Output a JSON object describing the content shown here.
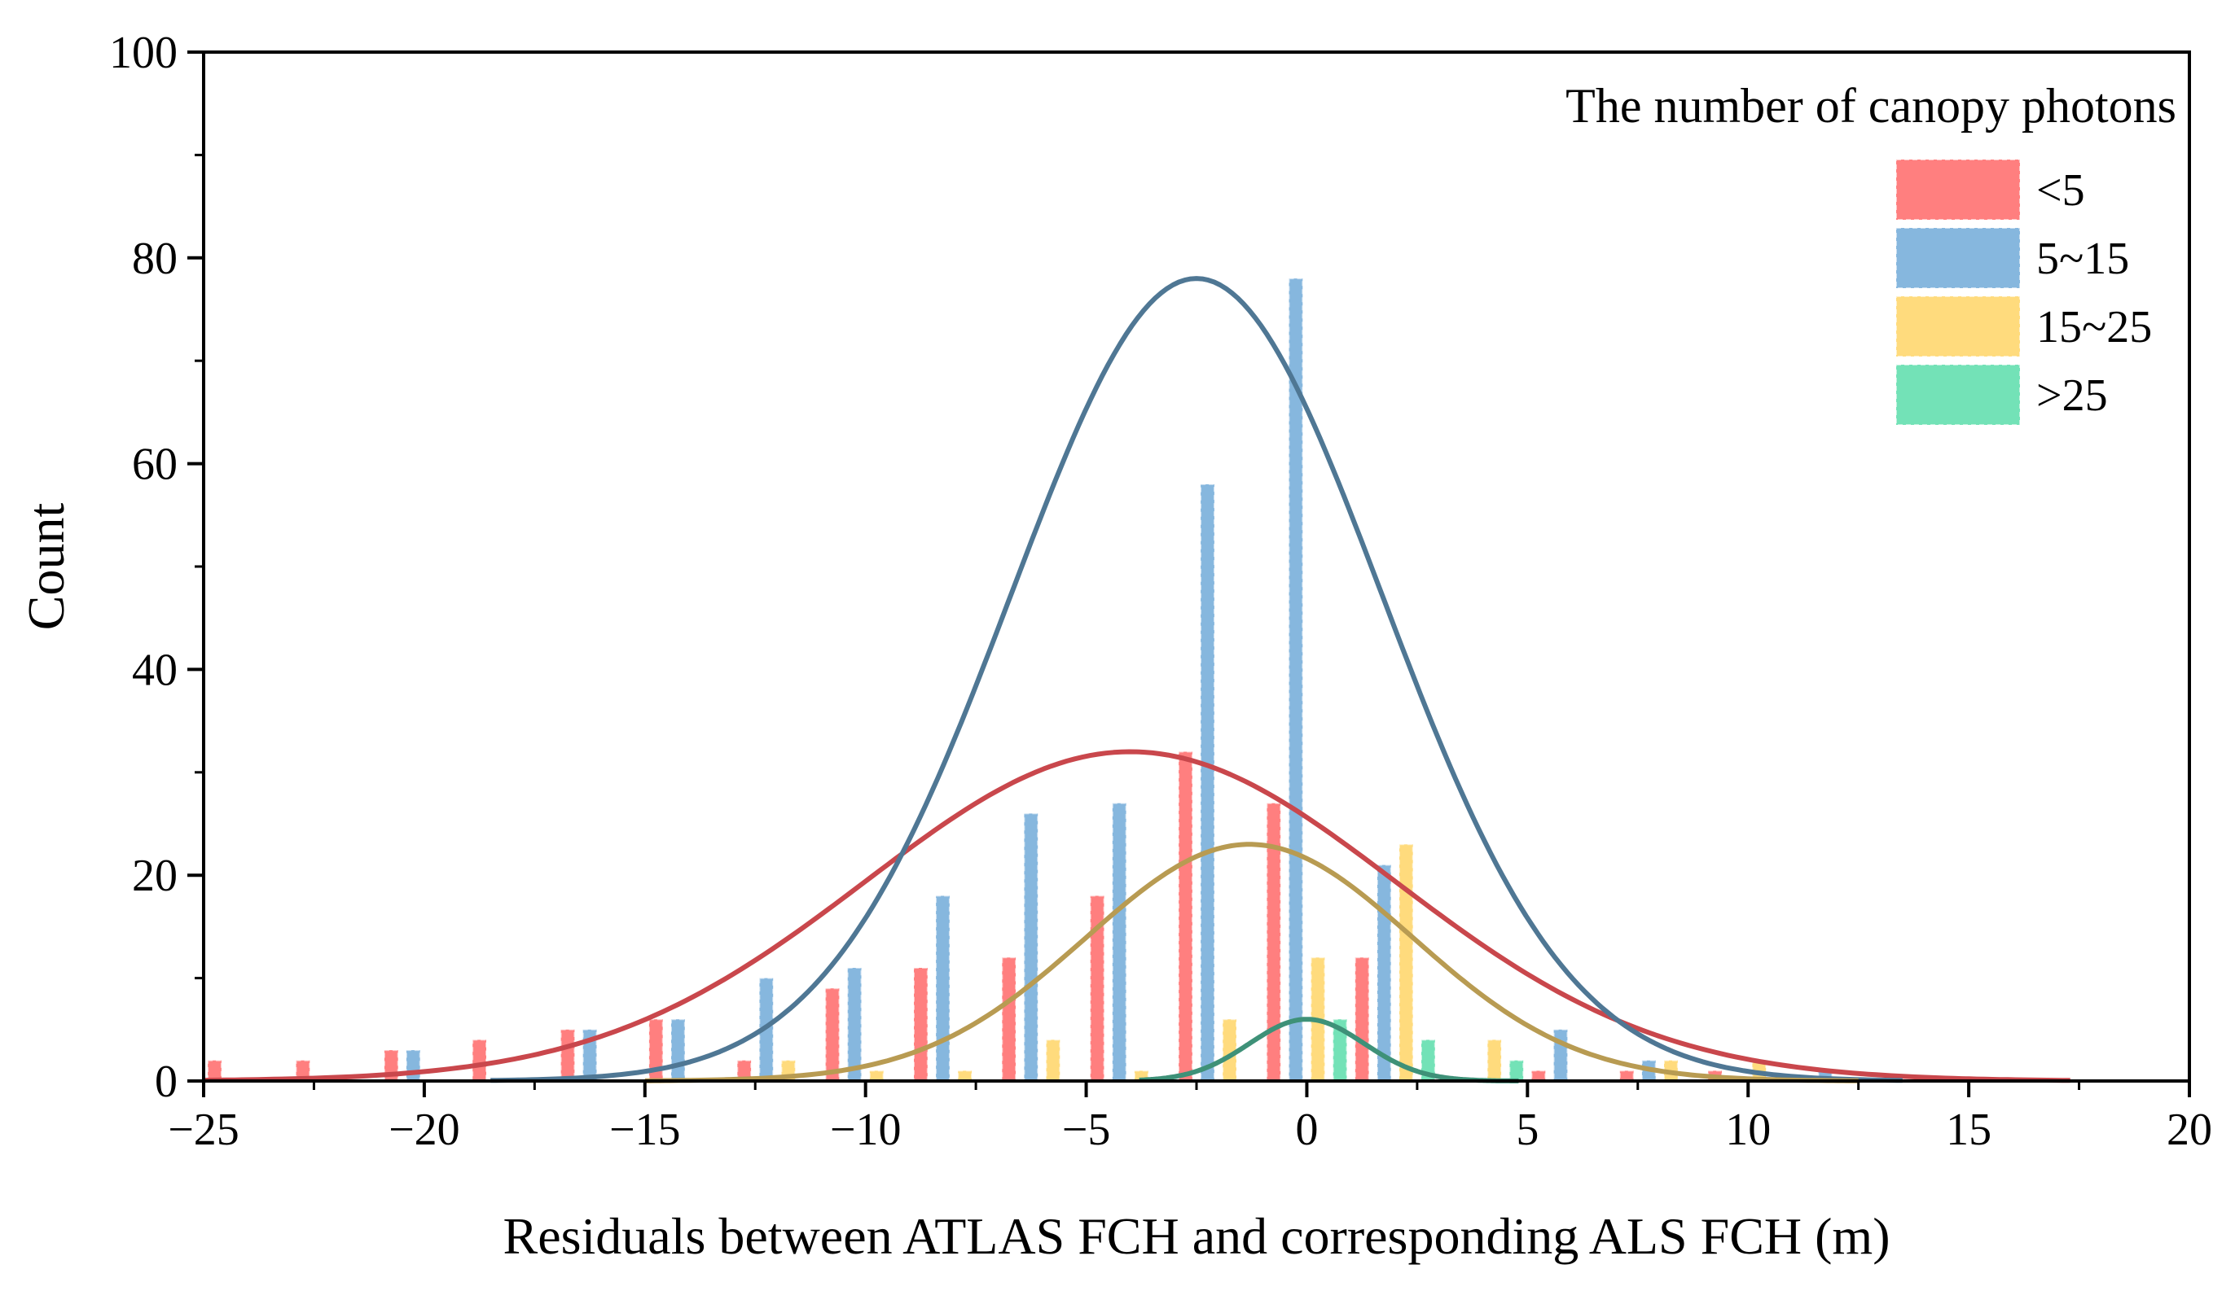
{
  "chart_data": {
    "type": "bar",
    "title": "",
    "xlabel": "Residuals between ATLAS FCH and corresponding ALS FCH (m)",
    "ylabel": "Count",
    "xlim": [
      -25,
      20
    ],
    "ylim": [
      0,
      100
    ],
    "x_ticks": [
      -25,
      -20,
      -15,
      -10,
      -5,
      0,
      5,
      10,
      15,
      20
    ],
    "x_tick_labels": [
      "−25",
      "−20",
      "−15",
      "−10",
      "−5",
      "0",
      "5",
      "10",
      "15",
      "20"
    ],
    "y_ticks": [
      0,
      20,
      40,
      60,
      80,
      100
    ],
    "y_tick_labels": [
      "0",
      "20",
      "40",
      "60",
      "80",
      "100"
    ],
    "bin_width": 2,
    "bin_centers": [
      -24,
      -22,
      -20,
      -18,
      -16,
      -14,
      -12,
      -10,
      -8,
      -6,
      -4,
      -2,
      0,
      2,
      4,
      6,
      8,
      10,
      12
    ],
    "legend": {
      "title": "The number of canopy photons",
      "position": "top-right"
    },
    "series": [
      {
        "name": "<5",
        "color": "#FF7F7F",
        "curve_color": "#C9474C",
        "values": [
          2,
          2,
          3,
          4,
          5,
          6,
          2,
          9,
          11,
          12,
          18,
          32,
          27,
          12,
          0,
          1,
          1,
          1,
          0
        ],
        "fit": {
          "mean": -4,
          "sd": 6.0,
          "peak": 32,
          "range": [
            -25,
            17.3
          ]
        }
      },
      {
        "name": "5~15",
        "color": "#86B7DE",
        "curve_color": "#4F7794",
        "values": [
          0,
          0,
          3,
          0,
          5,
          6,
          10,
          11,
          18,
          26,
          27,
          58,
          78,
          21,
          0,
          5,
          2,
          0,
          1
        ],
        "fit": {
          "mean": -2.5,
          "sd": 4.2,
          "peak": 78,
          "range": [
            -18.5,
            13.5
          ]
        }
      },
      {
        "name": "15~25",
        "color": "#FFDB7D",
        "curve_color": "#B89B52",
        "values": [
          0,
          0,
          0,
          0,
          0,
          0,
          2,
          1,
          1,
          4,
          1,
          6,
          12,
          23,
          4,
          0,
          2,
          2,
          0
        ],
        "fit": {
          "mean": -1.3,
          "sd": 3.7,
          "peak": 23,
          "range": [
            -15,
            12.5
          ]
        }
      },
      {
        "name": ">25",
        "color": "#73E2B7",
        "curve_color": "#3E9178",
        "values": [
          0,
          0,
          0,
          0,
          0,
          0,
          0,
          0,
          0,
          0,
          0,
          0,
          6,
          4,
          2,
          0,
          0,
          0,
          0
        ],
        "fit": {
          "mean": 0,
          "sd": 1.3,
          "peak": 6,
          "range": [
            -3.8,
            4.8
          ]
        }
      }
    ]
  }
}
